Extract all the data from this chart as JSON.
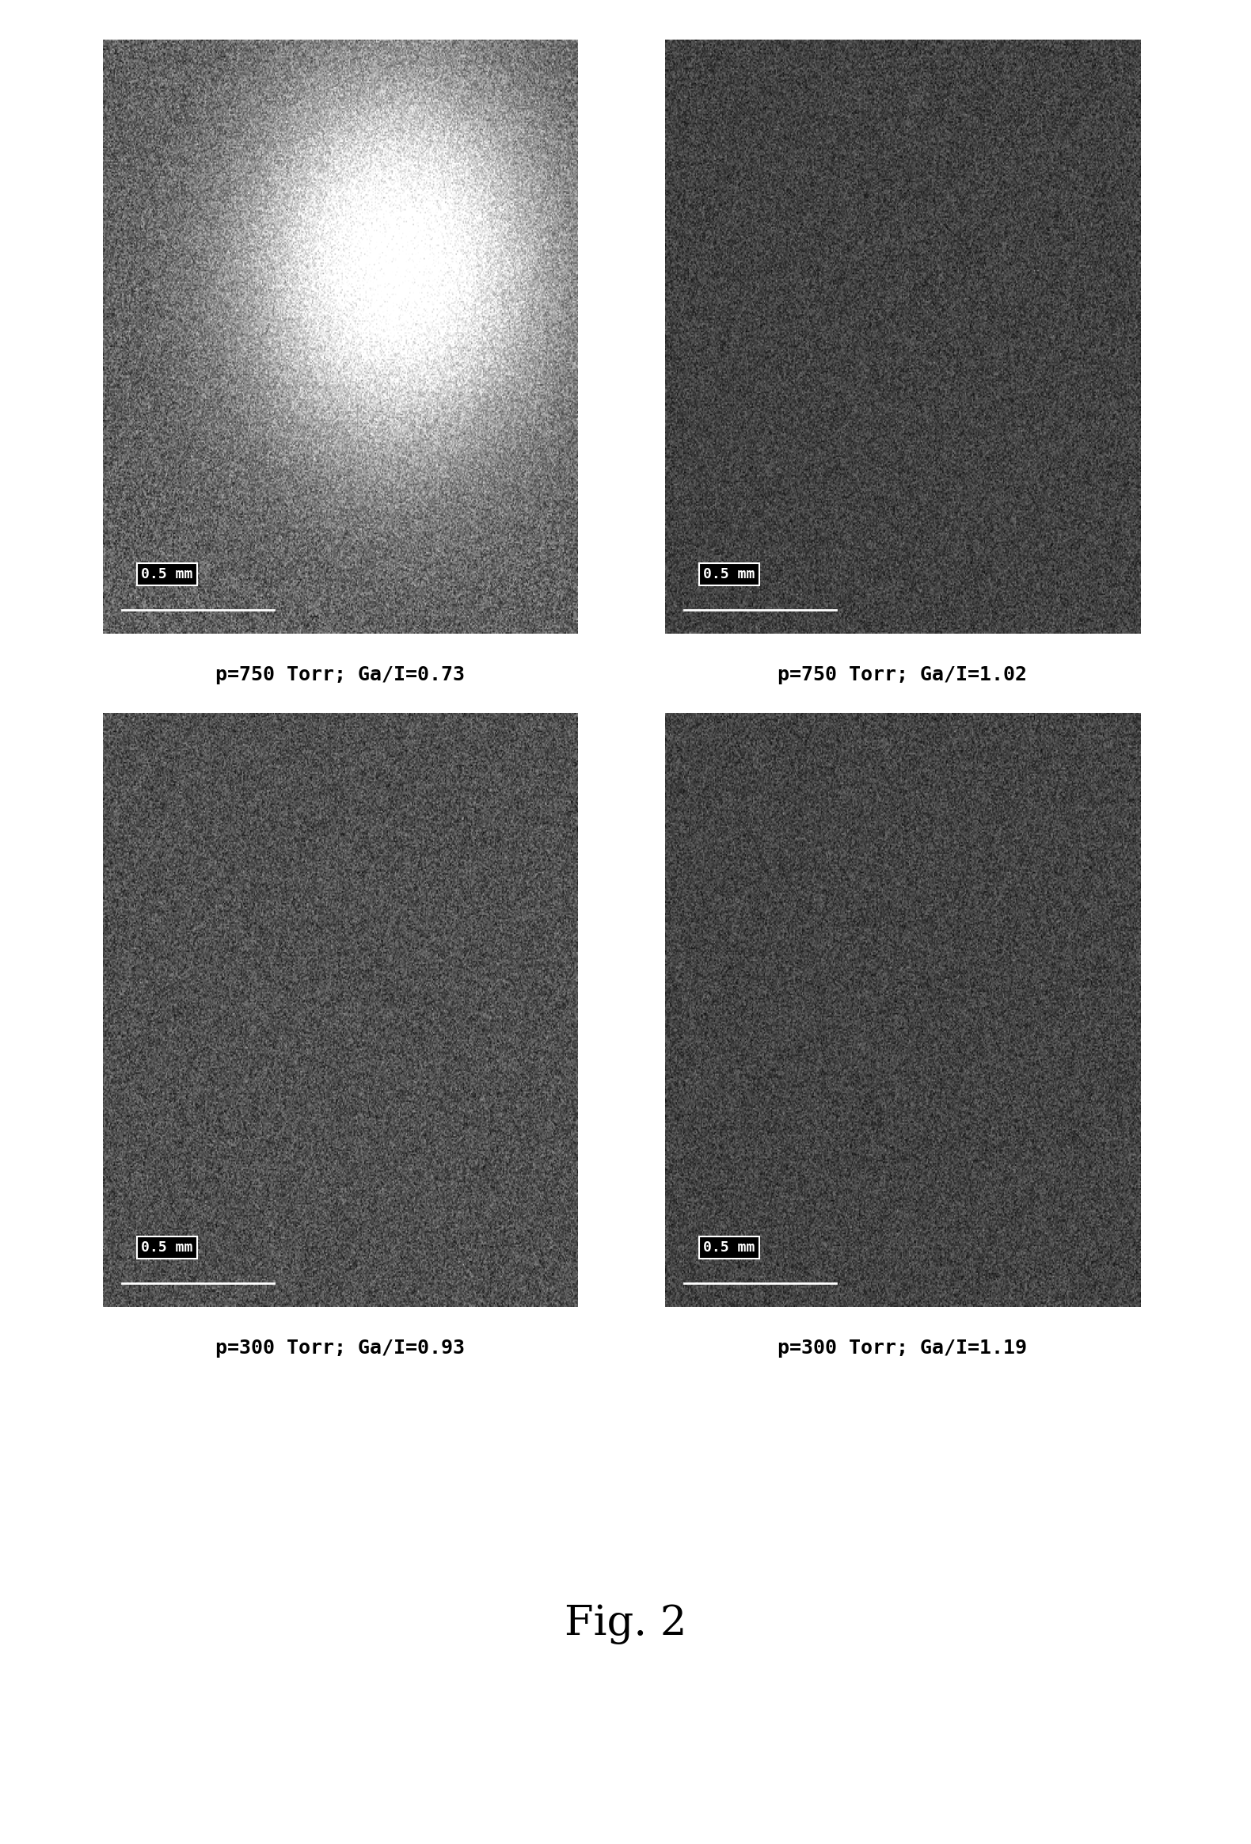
{
  "figure_title": "Fig. 2",
  "captions": [
    "p=750 Torr; Ga/I=0.73",
    "p=750 Torr; Ga/I=1.02",
    "p=300 Torr; Ga/I=0.93",
    "p=300 Torr; Ga/I=1.19"
  ],
  "scale_bar_text": [
    "0.5 mm",
    "0.5 mm",
    "0.5 mm",
    "0.5 mm"
  ],
  "bg_color": "#ffffff",
  "caption_fontsize": 18,
  "title_fontsize": 38,
  "seeds": [
    42,
    123,
    7,
    99
  ],
  "brightnesses": [
    1.0,
    0.7,
    0.85,
    0.72
  ],
  "bright_spots": [
    true,
    false,
    false,
    false
  ]
}
